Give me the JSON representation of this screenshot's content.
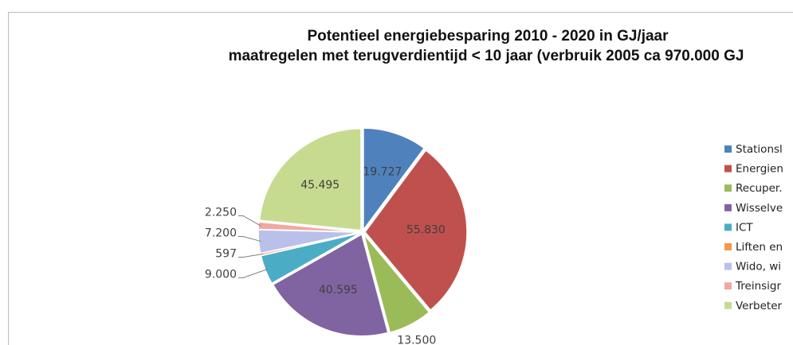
{
  "chart_data": {
    "type": "pie",
    "title": [
      "Potentieel energiebesparing 2010 - 2020 in GJ/jaar",
      "maatregelen met terugverdientijd < 10 jaar (verbruik 2005 ca 970.000 GJ"
    ],
    "categories": [
      "Stationsl",
      "Energien",
      "Recuper.",
      "Wisselve",
      "ICT",
      "Liften en",
      "Wido, wi",
      "Treinsigr",
      "Verbeter"
    ],
    "values": [
      19727,
      55830,
      13500,
      40595,
      9000,
      597,
      7200,
      2250,
      45495
    ],
    "value_labels": [
      "19.727",
      "55.830",
      "13.500",
      "40.595",
      "9.000",
      "597",
      "7.200",
      "2.250",
      "45.495"
    ],
    "colors": [
      "#4f81bd",
      "#c0504d",
      "#9bbb59",
      "#8064a2",
      "#4bacc6",
      "#f79646",
      "#b9c1ea",
      "#f2a7a2",
      "#c6db8f"
    ],
    "legend": "right"
  }
}
